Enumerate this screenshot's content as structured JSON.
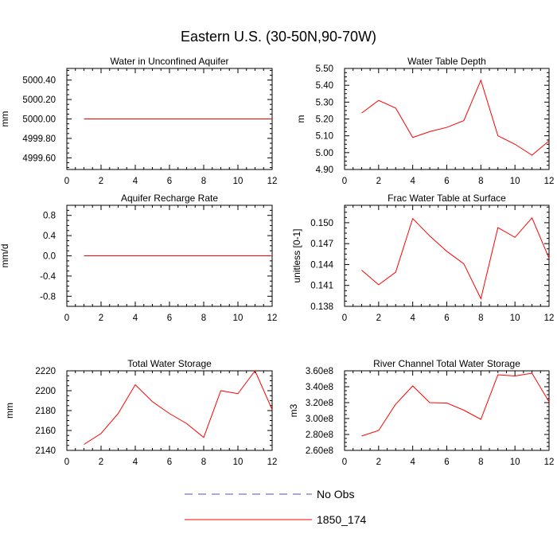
{
  "title": "Eastern U.S. (30-50N,90-70W)",
  "colors": {
    "model": "#ff0000",
    "obs": "#5050b4",
    "axis": "#000000"
  },
  "legend": {
    "entries": [
      {
        "label": "No Obs",
        "style": "dashed",
        "color": "#5050b4"
      },
      {
        "label": "1850_174",
        "style": "solid",
        "color": "#ff0000"
      }
    ]
  },
  "chart_data": [
    {
      "type": "line",
      "title": "Water in Unconfined Aquifer",
      "ylabel": "mm",
      "xlim": [
        0,
        12
      ],
      "xticks": [
        0,
        2,
        4,
        6,
        8,
        10,
        12
      ],
      "ylim": [
        4999.48,
        5000.52
      ],
      "yticks": [
        4999.6,
        4999.8,
        5000.0,
        5000.2,
        5000.4
      ],
      "ytick_labels": [
        "4999.60",
        "4999.80",
        "5000.00",
        "5000.20",
        "5000.40"
      ],
      "series": [
        {
          "name": "1850_174",
          "x": [
            1,
            2,
            3,
            4,
            5,
            6,
            7,
            8,
            9,
            10,
            11,
            12
          ],
          "y": [
            5000,
            5000,
            5000,
            5000,
            5000,
            5000,
            5000,
            5000,
            5000,
            5000,
            5000,
            5000
          ]
        }
      ]
    },
    {
      "type": "line",
      "title": "Water Table Depth",
      "ylabel": "m",
      "xlim": [
        0,
        12
      ],
      "xticks": [
        0,
        2,
        4,
        6,
        8,
        10,
        12
      ],
      "ylim": [
        4.9,
        5.5
      ],
      "yticks": [
        4.9,
        5.0,
        5.1,
        5.2,
        5.3,
        5.4,
        5.5
      ],
      "ytick_labels": [
        "4.90",
        "5.00",
        "5.10",
        "5.20",
        "5.30",
        "5.40",
        "5.50"
      ],
      "series": [
        {
          "name": "1850_174",
          "x": [
            1,
            2,
            3,
            4,
            5,
            6,
            7,
            8,
            9,
            10,
            11,
            12
          ],
          "y": [
            5.235,
            5.31,
            5.265,
            5.09,
            5.125,
            5.15,
            5.19,
            5.43,
            5.1,
            5.05,
            4.985,
            5.07
          ]
        }
      ]
    },
    {
      "type": "line",
      "title": "Aquifer Recharge Rate",
      "ylabel": "mm/d",
      "xlim": [
        0,
        12
      ],
      "xticks": [
        0,
        2,
        4,
        6,
        8,
        10,
        12
      ],
      "ylim": [
        -1.0,
        1.0
      ],
      "yticks": [
        -0.8,
        -0.4,
        0.0,
        0.4,
        0.8
      ],
      "ytick_labels": [
        "-0.8",
        "-0.4",
        "0.0",
        "0.4",
        "0.8"
      ],
      "series": [
        {
          "name": "1850_174",
          "x": [
            1,
            2,
            3,
            4,
            5,
            6,
            7,
            8,
            9,
            10,
            11,
            12
          ],
          "y": [
            0,
            0,
            0,
            0,
            0,
            0,
            0,
            0,
            0,
            0,
            0,
            0
          ]
        }
      ]
    },
    {
      "type": "line",
      "title": "Frac Water Table at Surface",
      "ylabel": "unitless [0-1]",
      "xlim": [
        0,
        12
      ],
      "xticks": [
        0,
        2,
        4,
        6,
        8,
        10,
        12
      ],
      "ylim": [
        0.138,
        0.1525
      ],
      "yticks": [
        0.138,
        0.141,
        0.144,
        0.147,
        0.15
      ],
      "ytick_labels": [
        "0.138",
        "0.141",
        "0.144",
        "0.147",
        "0.150"
      ],
      "series": [
        {
          "name": "1850_174",
          "x": [
            1,
            2,
            3,
            4,
            5,
            6,
            7,
            8,
            9,
            10,
            11,
            12
          ],
          "y": [
            0.1432,
            0.1411,
            0.1429,
            0.1506,
            0.1481,
            0.1459,
            0.1441,
            0.1391,
            0.1493,
            0.1479,
            0.1507,
            0.1449
          ]
        }
      ]
    },
    {
      "type": "line",
      "title": "Total Water Storage",
      "ylabel": "mm",
      "xlim": [
        0,
        12
      ],
      "xticks": [
        0,
        2,
        4,
        6,
        8,
        10,
        12
      ],
      "ylim": [
        2140,
        2220
      ],
      "yticks": [
        2140,
        2160,
        2180,
        2200,
        2220
      ],
      "ytick_labels": [
        "2140",
        "2160",
        "2180",
        "2200",
        "2220"
      ],
      "series": [
        {
          "name": "1850_174",
          "x": [
            1,
            2,
            3,
            4,
            5,
            6,
            7,
            8,
            9,
            10,
            11,
            12
          ],
          "y": [
            2146,
            2157,
            2177,
            2206,
            2189,
            2177,
            2167,
            2153,
            2200,
            2197,
            2220,
            2181
          ]
        }
      ]
    },
    {
      "type": "line",
      "title": "River Channel Total Water Storage",
      "ylabel": "m3",
      "xlim": [
        0,
        12
      ],
      "xticks": [
        0,
        2,
        4,
        6,
        8,
        10,
        12
      ],
      "ylim": [
        260000000.0,
        360000000.0
      ],
      "yticks": [
        260000000.0,
        280000000.0,
        300000000.0,
        320000000.0,
        340000000.0,
        360000000.0
      ],
      "ytick_labels": [
        "2.60e8",
        "2.80e8",
        "3.00e8",
        "3.20e8",
        "3.40e8",
        "3.60e8"
      ],
      "series": [
        {
          "name": "1850_174",
          "x": [
            1,
            2,
            3,
            4,
            5,
            6,
            7,
            8,
            9,
            10,
            11,
            12
          ],
          "y": [
            278000000.0,
            285000000.0,
            318000000.0,
            341000000.0,
            320000000.0,
            319500000.0,
            310500000.0,
            299000000.0,
            355000000.0,
            353500000.0,
            357000000.0,
            321000000.0
          ]
        }
      ]
    }
  ]
}
